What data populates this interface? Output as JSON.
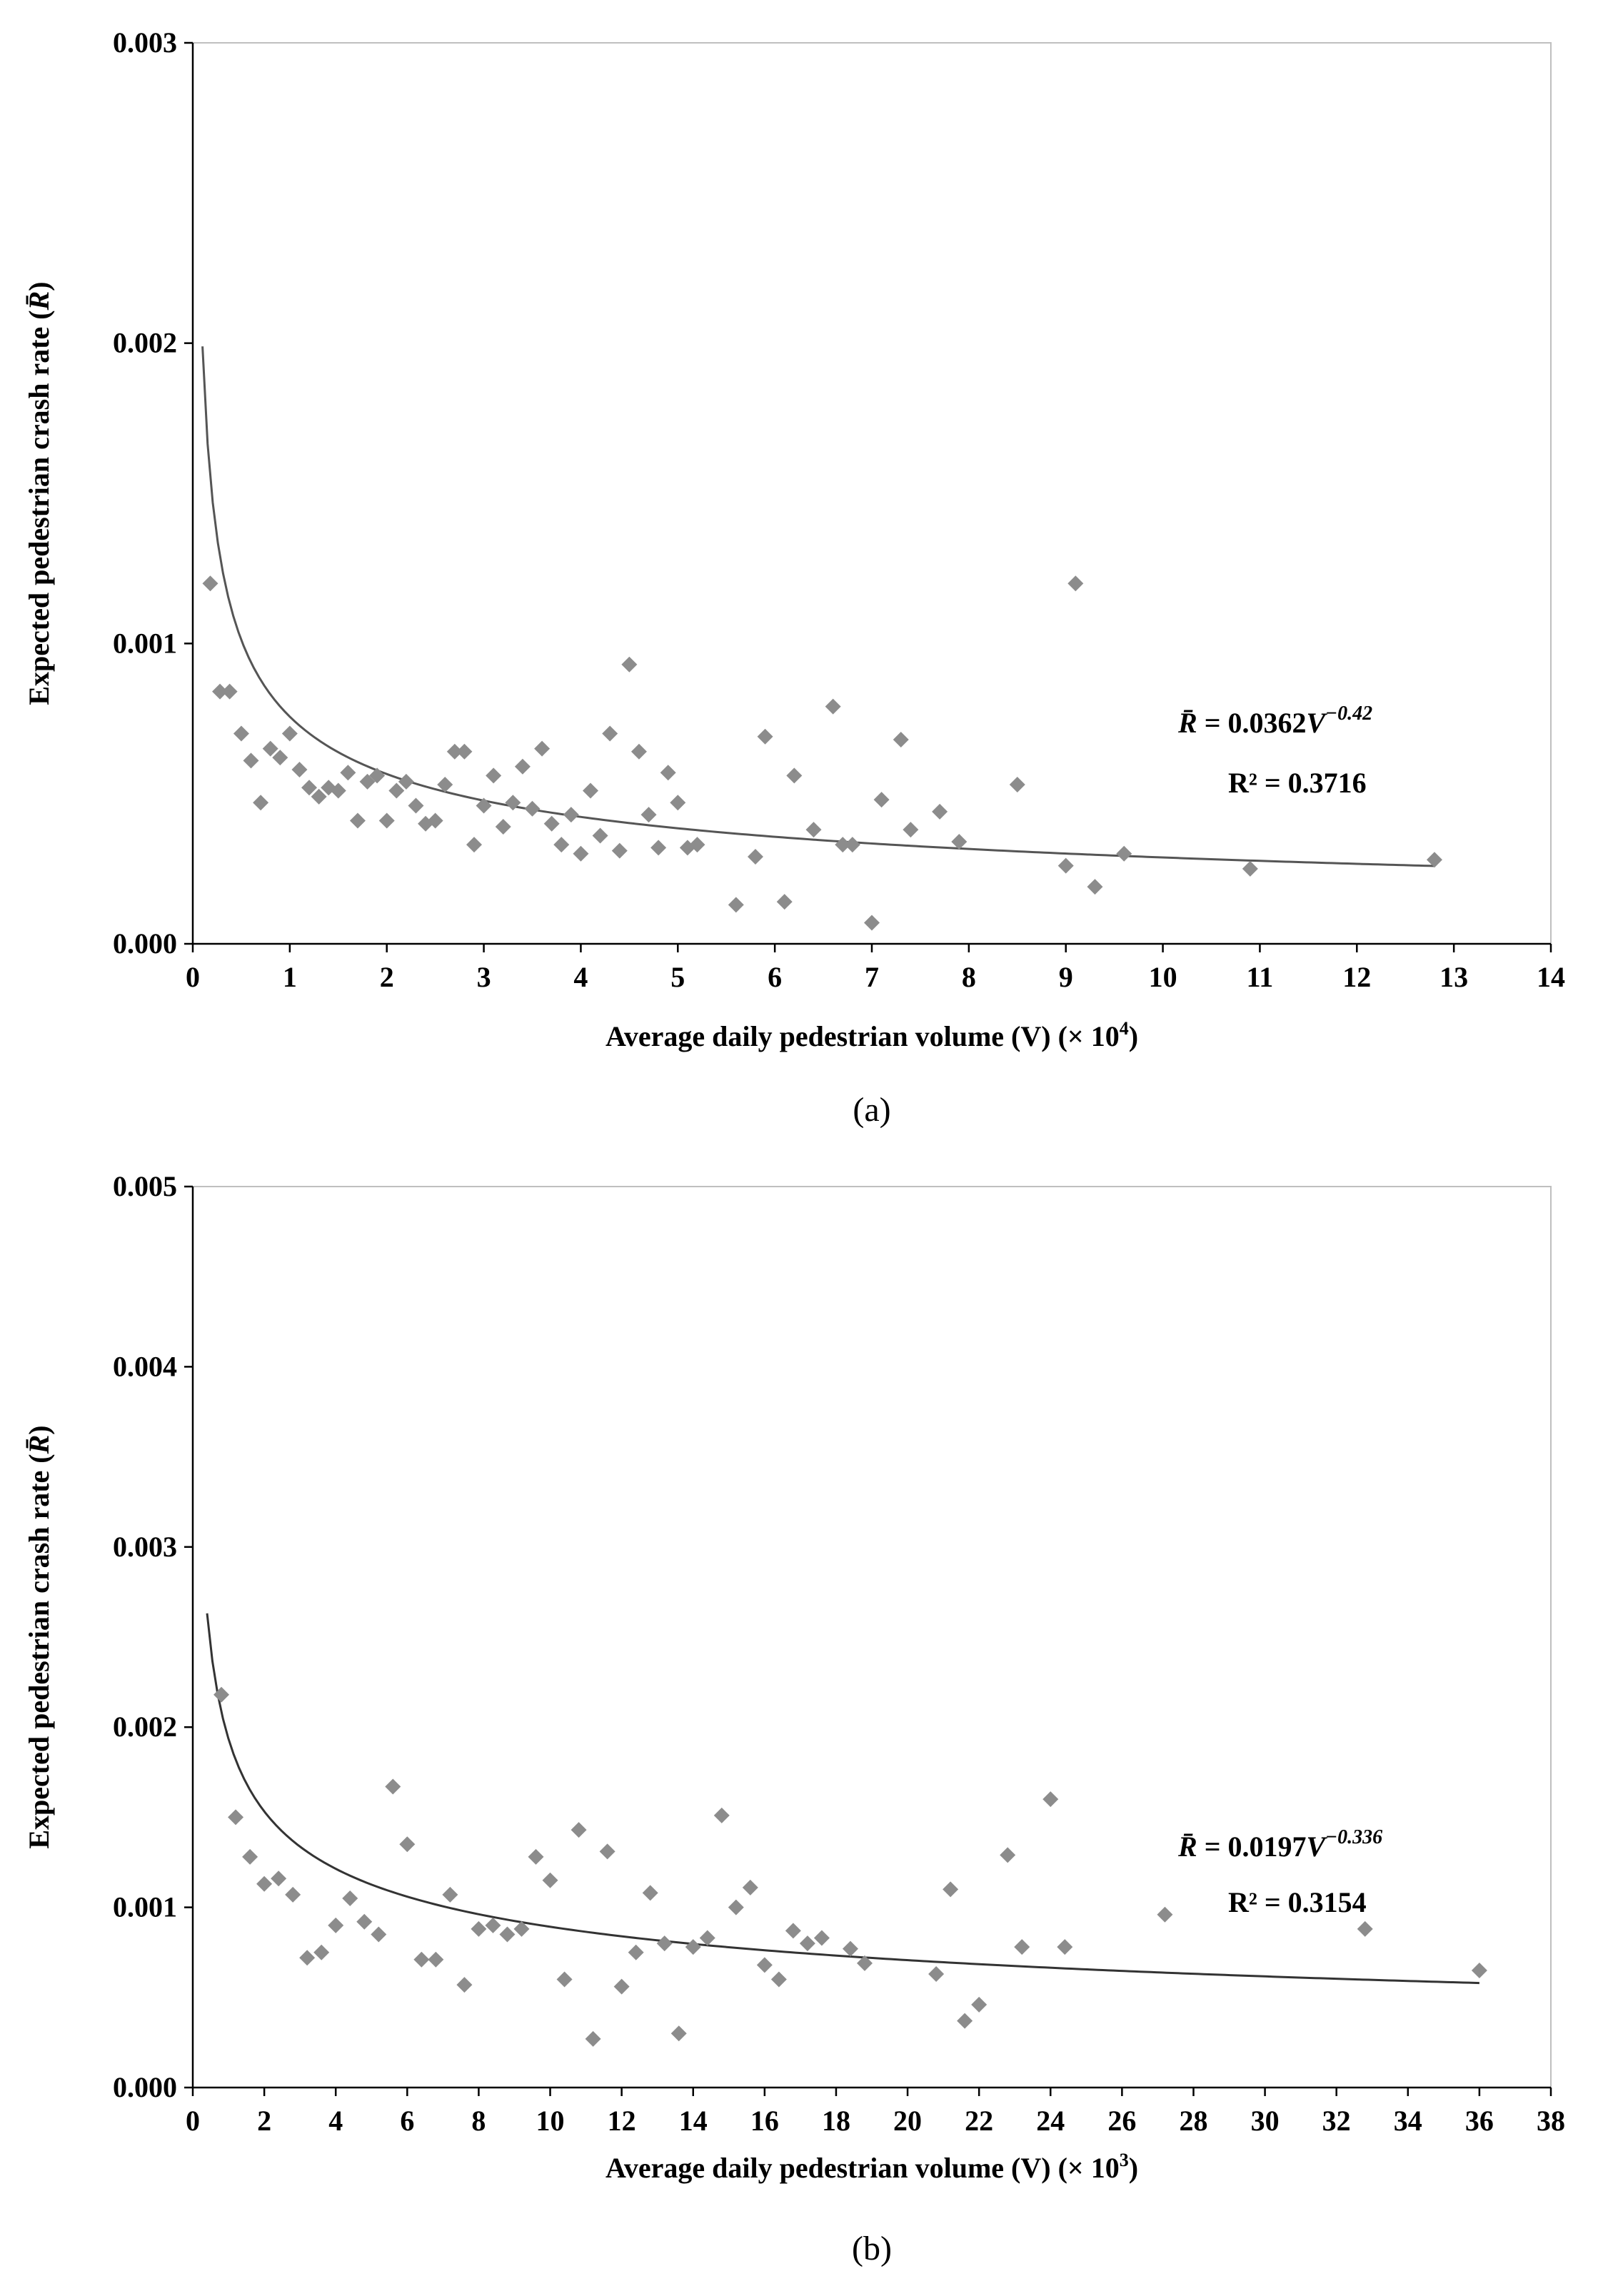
{
  "chart_data": [
    {
      "type": "scatter",
      "panel_label": "(a)",
      "xlabel_text": "Average daily pedestrian volume (V)",
      "xlabel_suffix": "(× 10",
      "xlabel_exp": "4",
      "xlabel_close": ")",
      "ylabel_text": "Expected pedestrian crash rate (",
      "ylabel_rbar": "R̄",
      "ylabel_close": ")",
      "xlim": [
        0,
        14
      ],
      "ylim": [
        0,
        0.003
      ],
      "xticks": [
        0,
        1,
        2,
        3,
        4,
        5,
        6,
        7,
        8,
        9,
        10,
        11,
        12,
        13,
        14
      ],
      "xtick_labels": [
        "0",
        "1",
        "2",
        "3",
        "4",
        "5",
        "6",
        "7",
        "8",
        "9",
        "10",
        "11",
        "12",
        "13",
        "14"
      ],
      "yticks": [
        0,
        0.001,
        0.002,
        0.003
      ],
      "ytick_labels": [
        "0.000",
        "0.001",
        "0.002",
        "0.003"
      ],
      "equation": {
        "lhs": "R̄",
        "rhs": " = 0.0362",
        "var": "V",
        "exp": "−0.42",
        "r2": "R² = 0.3716"
      },
      "trend": {
        "coef": 0.0362,
        "exp": -0.42,
        "x_from": 0.1,
        "x_to": 12.8,
        "x_scale": 10000
      },
      "marker_color": "#8c8c8c",
      "line_color": "#555555",
      "points": [
        [
          0.18,
          0.0012
        ],
        [
          0.28,
          0.00084
        ],
        [
          0.38,
          0.00084
        ],
        [
          0.5,
          0.0007
        ],
        [
          0.6,
          0.00061
        ],
        [
          0.7,
          0.00047
        ],
        [
          0.8,
          0.00065
        ],
        [
          0.9,
          0.00062
        ],
        [
          1.0,
          0.0007
        ],
        [
          1.1,
          0.00058
        ],
        [
          1.2,
          0.00052
        ],
        [
          1.3,
          0.00049
        ],
        [
          1.4,
          0.00052
        ],
        [
          1.5,
          0.00051
        ],
        [
          1.6,
          0.00057
        ],
        [
          1.7,
          0.00041
        ],
        [
          1.8,
          0.00054
        ],
        [
          1.9,
          0.00056
        ],
        [
          2.0,
          0.00041
        ],
        [
          2.1,
          0.00051
        ],
        [
          2.2,
          0.00054
        ],
        [
          2.3,
          0.00046
        ],
        [
          2.4,
          0.0004
        ],
        [
          2.5,
          0.00041
        ],
        [
          2.6,
          0.00053
        ],
        [
          2.7,
          0.00064
        ],
        [
          2.8,
          0.00064
        ],
        [
          2.9,
          0.00033
        ],
        [
          3.0,
          0.00046
        ],
        [
          3.1,
          0.00056
        ],
        [
          3.2,
          0.00039
        ],
        [
          3.3,
          0.00047
        ],
        [
          3.4,
          0.00059
        ],
        [
          3.5,
          0.00045
        ],
        [
          3.6,
          0.00065
        ],
        [
          3.7,
          0.0004
        ],
        [
          3.8,
          0.00033
        ],
        [
          3.9,
          0.00043
        ],
        [
          4.0,
          0.0003
        ],
        [
          4.1,
          0.00051
        ],
        [
          4.2,
          0.00036
        ],
        [
          4.3,
          0.0007
        ],
        [
          4.4,
          0.00031
        ],
        [
          4.5,
          0.00093
        ],
        [
          4.6,
          0.00064
        ],
        [
          4.7,
          0.00043
        ],
        [
          4.8,
          0.00032
        ],
        [
          4.9,
          0.00057
        ],
        [
          5.0,
          0.00047
        ],
        [
          5.1,
          0.00032
        ],
        [
          5.2,
          0.00033
        ],
        [
          5.6,
          0.00013
        ],
        [
          5.8,
          0.00029
        ],
        [
          5.9,
          0.00069
        ],
        [
          6.1,
          0.00014
        ],
        [
          6.2,
          0.00056
        ],
        [
          6.4,
          0.00038
        ],
        [
          6.6,
          0.00079
        ],
        [
          6.7,
          0.00033
        ],
        [
          6.8,
          0.00033
        ],
        [
          7.0,
          7e-05
        ],
        [
          7.1,
          0.00048
        ],
        [
          7.3,
          0.00068
        ],
        [
          7.4,
          0.00038
        ],
        [
          7.7,
          0.00044
        ],
        [
          7.9,
          0.00034
        ],
        [
          8.5,
          0.00053
        ],
        [
          9.0,
          0.00026
        ],
        [
          9.1,
          0.0012
        ],
        [
          9.3,
          0.00019
        ],
        [
          9.6,
          0.0003
        ],
        [
          10.9,
          0.00025
        ],
        [
          12.8,
          0.00028
        ]
      ]
    },
    {
      "type": "scatter",
      "panel_label": "(b)",
      "xlabel_text": "Average daily pedestrian volume (V)",
      "xlabel_suffix": "(× 10",
      "xlabel_exp": "3",
      "xlabel_close": ")",
      "ylabel_text": "Expected pedestrian crash rate (",
      "ylabel_rbar": "R̄",
      "ylabel_close": ")",
      "xlim": [
        0,
        38
      ],
      "ylim": [
        0,
        0.005
      ],
      "xticks": [
        0,
        2,
        4,
        6,
        8,
        10,
        12,
        14,
        16,
        18,
        20,
        22,
        24,
        26,
        28,
        30,
        32,
        34,
        36,
        38
      ],
      "xtick_labels": [
        "0",
        "2",
        "4",
        "6",
        "8",
        "10",
        "12",
        "14",
        "16",
        "18",
        "20",
        "22",
        "24",
        "26",
        "28",
        "30",
        "32",
        "34",
        "36",
        "38"
      ],
      "yticks": [
        0,
        0.001,
        0.002,
        0.003,
        0.004,
        0.005
      ],
      "ytick_labels": [
        "0.000",
        "0.001",
        "0.002",
        "0.003",
        "0.004",
        "0.005"
      ],
      "equation": {
        "lhs": "R̄",
        "rhs": " = 0.0197",
        "var": "V",
        "exp": "−0.336",
        "r2": "R² = 0.3154"
      },
      "trend": {
        "coef": 0.0197,
        "exp": -0.336,
        "x_from": 0.4,
        "x_to": 36.0,
        "x_scale": 1000
      },
      "marker_color": "#8c8c8c",
      "line_color": "#333333",
      "points": [
        [
          0.8,
          0.00218
        ],
        [
          1.2,
          0.0015
        ],
        [
          1.6,
          0.00128
        ],
        [
          2.0,
          0.00113
        ],
        [
          2.4,
          0.00116
        ],
        [
          2.8,
          0.00107
        ],
        [
          3.2,
          0.00072
        ],
        [
          3.6,
          0.00075
        ],
        [
          4.0,
          0.0009
        ],
        [
          4.4,
          0.00105
        ],
        [
          4.8,
          0.00092
        ],
        [
          5.2,
          0.00085
        ],
        [
          5.6,
          0.00167
        ],
        [
          6.0,
          0.00135
        ],
        [
          6.4,
          0.00071
        ],
        [
          6.8,
          0.00071
        ],
        [
          7.2,
          0.00107
        ],
        [
          7.6,
          0.00057
        ],
        [
          8.0,
          0.00088
        ],
        [
          8.4,
          0.0009
        ],
        [
          8.8,
          0.00085
        ],
        [
          9.2,
          0.00088
        ],
        [
          9.6,
          0.00128
        ],
        [
          10.0,
          0.00115
        ],
        [
          10.4,
          0.0006
        ],
        [
          10.8,
          0.00143
        ],
        [
          11.2,
          0.00027
        ],
        [
          11.6,
          0.00131
        ],
        [
          12.0,
          0.00056
        ],
        [
          12.4,
          0.00075
        ],
        [
          12.8,
          0.00108
        ],
        [
          13.2,
          0.0008
        ],
        [
          13.6,
          0.0003
        ],
        [
          14.0,
          0.00078
        ],
        [
          14.4,
          0.00083
        ],
        [
          14.8,
          0.00151
        ],
        [
          15.2,
          0.001
        ],
        [
          15.6,
          0.00111
        ],
        [
          16.0,
          0.00068
        ],
        [
          16.4,
          0.0006
        ],
        [
          16.8,
          0.00087
        ],
        [
          17.2,
          0.0008
        ],
        [
          17.6,
          0.00083
        ],
        [
          18.4,
          0.00077
        ],
        [
          18.8,
          0.00069
        ],
        [
          20.8,
          0.00063
        ],
        [
          21.2,
          0.0011
        ],
        [
          21.6,
          0.00037
        ],
        [
          22.0,
          0.00046
        ],
        [
          22.8,
          0.00129
        ],
        [
          23.2,
          0.00078
        ],
        [
          24.0,
          0.0016
        ],
        [
          24.4,
          0.00078
        ],
        [
          27.2,
          0.00096
        ],
        [
          32.8,
          0.00088
        ],
        [
          36.0,
          0.00065
        ]
      ]
    }
  ]
}
